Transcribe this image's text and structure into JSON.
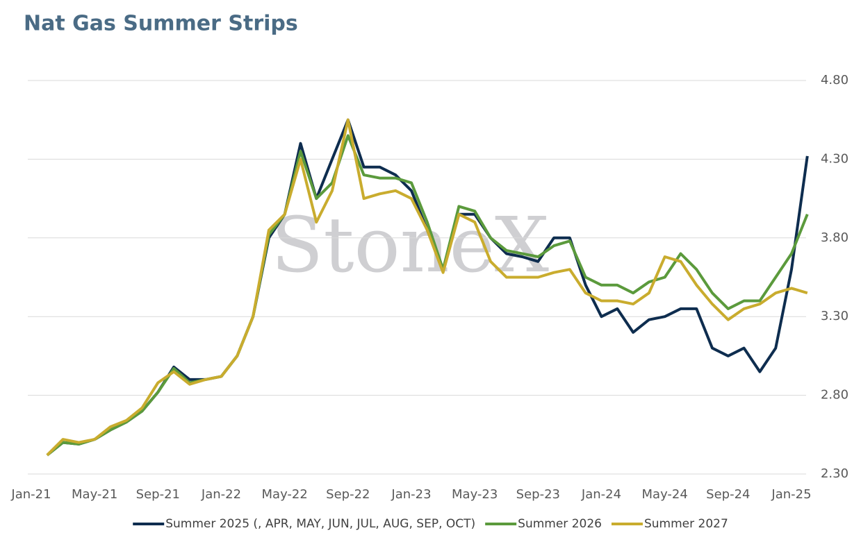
{
  "chart_data": {
    "type": "line",
    "title": "Nat Gas Summer Strips",
    "watermark": "StoneX",
    "categories": [
      "Jan-21",
      null,
      null,
      null,
      "May-21",
      null,
      null,
      null,
      "Sep-21",
      null,
      null,
      null,
      "Jan-22",
      null,
      null,
      null,
      "May-22",
      null,
      null,
      null,
      "Sep-22",
      null,
      null,
      null,
      "Jan-23",
      null,
      null,
      null,
      "May-23",
      null,
      null,
      null,
      "Sep-23",
      null,
      null,
      null,
      "Jan-24",
      null,
      null,
      null,
      "May-24",
      null,
      null,
      null,
      "Sep-24",
      null,
      null,
      null,
      "Jan-25",
      null
    ],
    "series": [
      {
        "name": "Summer 2025 (, APR, MAY, JUN, JUL, AUG, SEP, OCT)",
        "color": "#0e2d4f",
        "values": [
          null,
          2.42,
          2.5,
          2.49,
          2.52,
          2.58,
          2.63,
          2.7,
          2.82,
          2.98,
          2.9,
          2.9,
          2.92,
          3.05,
          3.3,
          3.8,
          3.95,
          4.4,
          4.05,
          4.3,
          4.55,
          4.25,
          4.25,
          4.2,
          4.1,
          3.85,
          3.6,
          3.95,
          3.95,
          3.8,
          3.7,
          3.68,
          3.65,
          3.8,
          3.8,
          3.5,
          3.3,
          3.35,
          3.2,
          3.28,
          3.3,
          3.35,
          3.35,
          3.1,
          3.05,
          3.1,
          2.95,
          3.1,
          3.6,
          4.32
        ]
      },
      {
        "name": "Summer 2026",
        "color": "#5b9a3c",
        "values": [
          null,
          2.42,
          2.5,
          2.49,
          2.52,
          2.58,
          2.63,
          2.7,
          2.82,
          2.97,
          2.88,
          2.9,
          2.92,
          3.05,
          3.3,
          3.82,
          3.95,
          4.35,
          4.05,
          4.15,
          4.45,
          4.2,
          4.18,
          4.18,
          4.15,
          3.9,
          3.6,
          4.0,
          3.97,
          3.8,
          3.72,
          3.7,
          3.68,
          3.75,
          3.78,
          3.55,
          3.5,
          3.5,
          3.45,
          3.52,
          3.55,
          3.7,
          3.6,
          3.45,
          3.35,
          3.4,
          3.4,
          3.55,
          3.7,
          3.95
        ]
      },
      {
        "name": "Summer 2027",
        "color": "#c9ac2e",
        "values": [
          null,
          2.42,
          2.52,
          2.5,
          2.52,
          2.6,
          2.64,
          2.72,
          2.88,
          2.95,
          2.87,
          2.9,
          2.92,
          3.05,
          3.3,
          3.85,
          3.95,
          4.3,
          3.9,
          4.1,
          4.55,
          4.05,
          4.08,
          4.1,
          4.05,
          3.85,
          3.58,
          3.95,
          3.9,
          3.65,
          3.55,
          3.55,
          3.55,
          3.58,
          3.6,
          3.45,
          3.4,
          3.4,
          3.38,
          3.45,
          3.68,
          3.65,
          3.5,
          3.38,
          3.28,
          3.35,
          3.38,
          3.45,
          3.48,
          3.45
        ]
      }
    ],
    "ylim": [
      2.3,
      4.8
    ],
    "yticks": [
      {
        "value": 2.3,
        "label": "2.30"
      },
      {
        "value": 2.8,
        "label": "2.80"
      },
      {
        "value": 3.3,
        "label": "3.30"
      },
      {
        "value": 3.8,
        "label": "3.80"
      },
      {
        "value": 4.3,
        "label": "4.30"
      },
      {
        "value": 4.8,
        "label": "4.80"
      }
    ],
    "grid": true,
    "y_axis_side": "right",
    "legend": "bottom"
  }
}
